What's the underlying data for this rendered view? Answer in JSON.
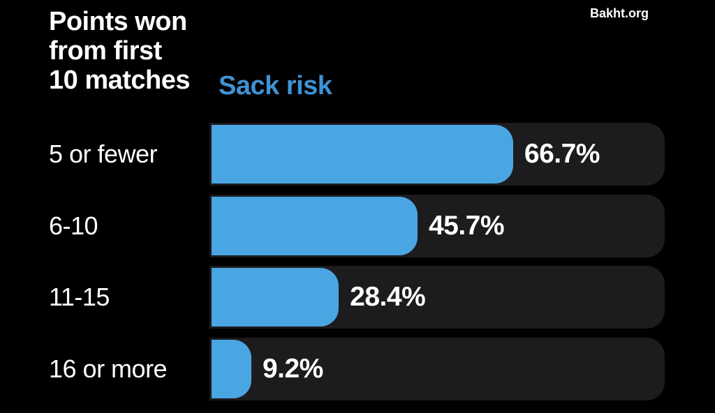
{
  "page": {
    "background_color": "#000000",
    "watermark": "Bakht.org"
  },
  "header": {
    "title_lines": [
      "Points won",
      "from first",
      "10 matches"
    ],
    "subtitle": "Sack risk",
    "subtitle_color": "#3F92D3"
  },
  "chart_data": {
    "type": "bar",
    "orientation": "horizontal",
    "title": "Points won from first 10 matches",
    "series_name": "Sack risk",
    "categories": [
      "5 or fewer",
      "6-10",
      "11-15",
      "16 or more"
    ],
    "values": [
      66.7,
      45.7,
      28.4,
      9.2
    ],
    "value_labels": [
      "66.7%",
      "45.7%",
      "28.4%",
      "9.2%"
    ],
    "xlim": [
      0,
      100
    ],
    "grid": false,
    "legend": false,
    "bar_color": "#4AA5E3",
    "track_color": "#1C1B1D",
    "label_text_color": "#FFFFFF",
    "value_text_color": "#FFFFFF"
  }
}
